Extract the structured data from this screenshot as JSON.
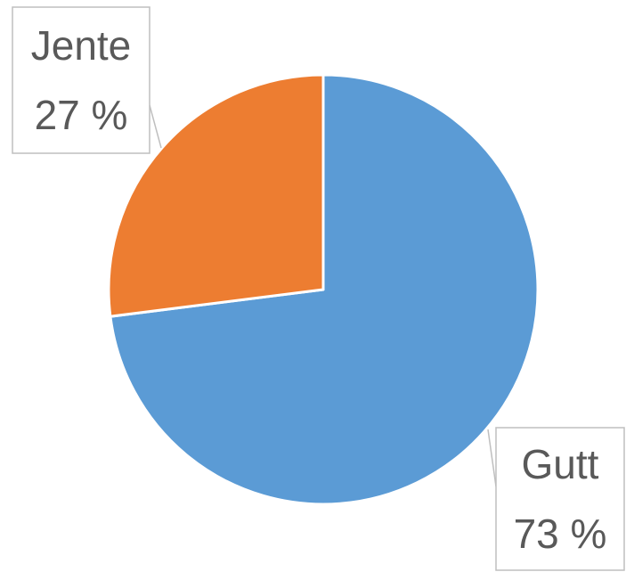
{
  "chart_data": {
    "type": "pie",
    "categories": [
      "Gutt",
      "Jente"
    ],
    "values": [
      73,
      27
    ],
    "value_labels": [
      "73 %",
      "27 %"
    ],
    "colors": [
      "#5b9bd5",
      "#ed7d31"
    ]
  }
}
